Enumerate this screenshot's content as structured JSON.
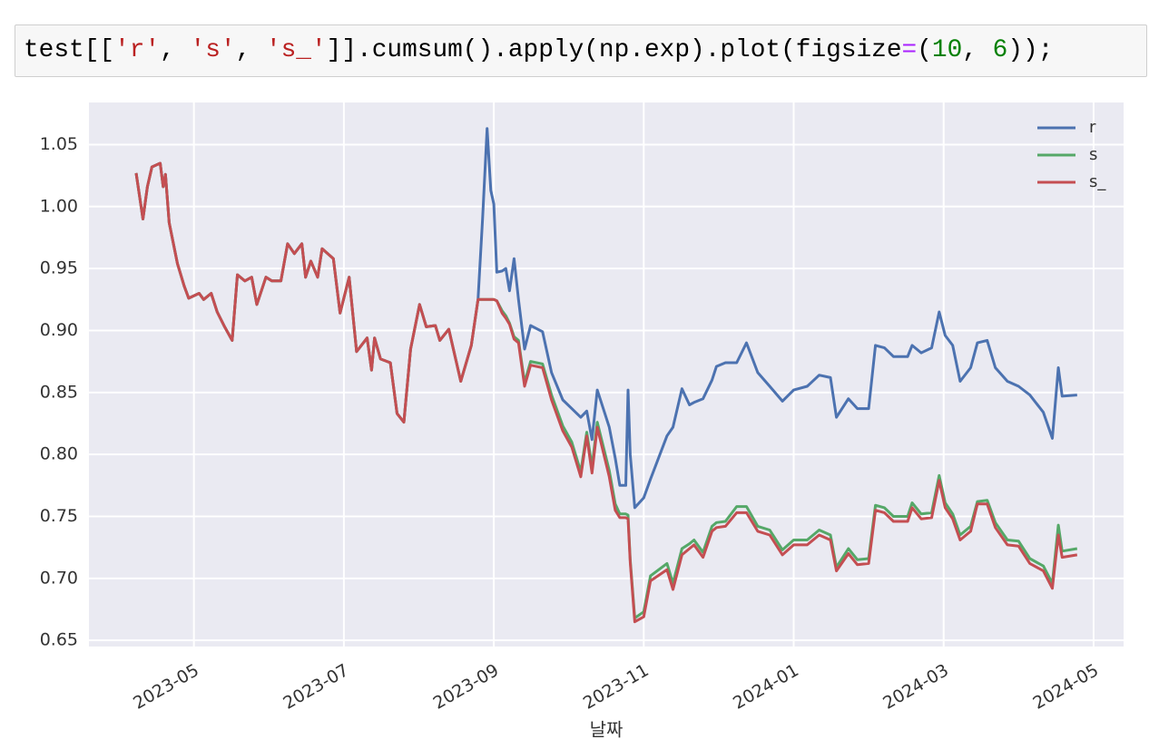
{
  "code": [
    {
      "text": "test[[",
      "color": "#000000"
    },
    {
      "text": "'r'",
      "color": "#ba2121"
    },
    {
      "text": ", ",
      "color": "#000000"
    },
    {
      "text": "'s'",
      "color": "#ba2121"
    },
    {
      "text": ", ",
      "color": "#000000"
    },
    {
      "text": "'s_'",
      "color": "#ba2121"
    },
    {
      "text": "]].cumsum().apply(np.exp).plot(figsize",
      "color": "#000000"
    },
    {
      "text": "=",
      "color": "#aa22ff"
    },
    {
      "text": "(",
      "color": "#000000"
    },
    {
      "text": "10",
      "color": "#008000"
    },
    {
      "text": ", ",
      "color": "#000000"
    },
    {
      "text": "6",
      "color": "#008000"
    },
    {
      "text": "));",
      "color": "#000000"
    }
  ],
  "chart_data": {
    "type": "line",
    "xlabel": "날짜",
    "grid": true,
    "legend": "upper right",
    "xlim": [
      -0.4,
      13.4
    ],
    "xticks": [
      {
        "value": 1,
        "label": "2023-05"
      },
      {
        "value": 3,
        "label": "2023-07"
      },
      {
        "value": 5,
        "label": "2023-09"
      },
      {
        "value": 7,
        "label": "2023-11"
      },
      {
        "value": 9,
        "label": "2024-01"
      },
      {
        "value": 11,
        "label": "2024-03"
      },
      {
        "value": 13,
        "label": "2024-05"
      }
    ],
    "ylim": [
      0.645,
      1.084
    ],
    "yticks": [
      0.65,
      {
        "value": 0.7,
        "label": "0.70"
      },
      0.75,
      {
        "value": 0.8,
        "label": "0.80"
      },
      0.85,
      {
        "value": 0.9,
        "label": "0.90"
      },
      0.95,
      {
        "value": 1,
        "label": "1.00"
      },
      1.05
    ],
    "x": [
      0.23,
      0.32,
      0.38,
      0.44,
      0.55,
      0.59,
      0.62,
      0.67,
      0.78,
      0.87,
      0.93,
      1.07,
      1.13,
      1.23,
      1.31,
      1.41,
      1.51,
      1.58,
      1.68,
      1.77,
      1.84,
      1.96,
      2.04,
      2.16,
      2.25,
      2.34,
      2.44,
      2.49,
      2.56,
      2.65,
      2.71,
      2.86,
      2.95,
      3.07,
      3.17,
      3.31,
      3.37,
      3.41,
      3.49,
      3.62,
      3.71,
      3.8,
      3.89,
      4.01,
      4.1,
      4.22,
      4.28,
      4.4,
      4.56,
      4.7,
      4.79,
      4.85,
      4.91,
      4.96,
      5.0,
      5.04,
      5.11,
      5.16,
      5.21,
      5.27,
      5.33,
      5.41,
      5.49,
      5.65,
      5.77,
      5.92,
      6.04,
      6.16,
      6.24,
      6.31,
      6.38,
      6.54,
      6.62,
      6.68,
      6.76,
      6.79,
      6.82,
      6.88,
      7.0,
      7.09,
      7.31,
      7.39,
      7.51,
      7.61,
      7.67,
      7.79,
      7.91,
      7.97,
      8.09,
      8.24,
      8.37,
      8.52,
      8.68,
      8.85,
      9.0,
      9.18,
      9.34,
      9.49,
      9.57,
      9.73,
      9.85,
      10.0,
      10.09,
      10.21,
      10.33,
      10.52,
      10.58,
      10.7,
      10.84,
      10.94,
      11.02,
      11.12,
      11.22,
      11.36,
      11.45,
      11.58,
      11.69,
      11.85,
      12.0,
      12.15,
      12.33,
      12.45,
      12.53,
      12.58,
      12.78
    ],
    "series": [
      {
        "name": "r",
        "color": "#4c72b0",
        "values": [
          1.027,
          0.99,
          1.016,
          1.032,
          1.035,
          1.016,
          1.026,
          0.987,
          0.954,
          0.936,
          0.926,
          0.93,
          0.925,
          0.93,
          0.915,
          0.903,
          0.892,
          0.945,
          0.94,
          0.943,
          0.921,
          0.943,
          0.94,
          0.94,
          0.97,
          0.962,
          0.97,
          0.943,
          0.956,
          0.943,
          0.966,
          0.958,
          0.914,
          0.943,
          0.883,
          0.894,
          0.868,
          0.894,
          0.877,
          0.874,
          0.833,
          0.826,
          0.885,
          0.921,
          0.903,
          0.904,
          0.892,
          0.901,
          0.859,
          0.888,
          0.925,
          0.99,
          1.063,
          1.013,
          1.002,
          0.947,
          0.948,
          0.95,
          0.932,
          0.958,
          0.925,
          0.885,
          0.904,
          0.899,
          0.866,
          0.844,
          0.837,
          0.83,
          0.835,
          0.812,
          0.852,
          0.822,
          0.797,
          0.775,
          0.775,
          0.852,
          0.8,
          0.757,
          0.765,
          0.78,
          0.815,
          0.822,
          0.853,
          0.84,
          0.842,
          0.845,
          0.86,
          0.871,
          0.874,
          0.874,
          0.89,
          0.866,
          0.855,
          0.843,
          0.852,
          0.855,
          0.864,
          0.862,
          0.83,
          0.845,
          0.837,
          0.837,
          0.888,
          0.886,
          0.879,
          0.879,
          0.888,
          0.882,
          0.886,
          0.915,
          0.896,
          0.888,
          0.859,
          0.87,
          0.89,
          0.892,
          0.87,
          0.859,
          0.855,
          0.848,
          0.834,
          0.813,
          0.87,
          0.847,
          0.848
        ]
      },
      {
        "name": "s",
        "color": "#55a868",
        "values": [
          1.027,
          0.99,
          1.016,
          1.032,
          1.035,
          1.016,
          1.026,
          0.987,
          0.954,
          0.936,
          0.926,
          0.93,
          0.925,
          0.93,
          0.915,
          0.903,
          0.892,
          0.945,
          0.94,
          0.943,
          0.921,
          0.943,
          0.94,
          0.94,
          0.97,
          0.962,
          0.97,
          0.943,
          0.956,
          0.943,
          0.966,
          0.958,
          0.914,
          0.943,
          0.883,
          0.894,
          0.868,
          0.894,
          0.877,
          0.874,
          0.833,
          0.826,
          0.885,
          0.921,
          0.903,
          0.904,
          0.892,
          0.901,
          0.859,
          0.888,
          0.925,
          0.925,
          0.925,
          0.925,
          0.925,
          0.924,
          0.916,
          0.912,
          0.906,
          0.895,
          0.892,
          0.858,
          0.875,
          0.873,
          0.848,
          0.823,
          0.81,
          0.786,
          0.818,
          0.79,
          0.826,
          0.787,
          0.76,
          0.752,
          0.752,
          0.751,
          0.715,
          0.668,
          0.673,
          0.702,
          0.712,
          0.696,
          0.724,
          0.728,
          0.731,
          0.721,
          0.742,
          0.745,
          0.746,
          0.758,
          0.758,
          0.742,
          0.739,
          0.723,
          0.731,
          0.731,
          0.739,
          0.735,
          0.709,
          0.724,
          0.715,
          0.716,
          0.759,
          0.757,
          0.75,
          0.75,
          0.761,
          0.752,
          0.753,
          0.783,
          0.761,
          0.752,
          0.735,
          0.742,
          0.762,
          0.763,
          0.745,
          0.731,
          0.73,
          0.716,
          0.71,
          0.696,
          0.743,
          0.722,
          0.724
        ]
      },
      {
        "name": "s_",
        "color": "#c44e52",
        "values": [
          1.027,
          0.99,
          1.016,
          1.032,
          1.035,
          1.016,
          1.026,
          0.987,
          0.954,
          0.936,
          0.926,
          0.93,
          0.925,
          0.93,
          0.915,
          0.903,
          0.892,
          0.945,
          0.94,
          0.943,
          0.921,
          0.943,
          0.94,
          0.94,
          0.97,
          0.962,
          0.97,
          0.943,
          0.956,
          0.943,
          0.966,
          0.958,
          0.914,
          0.943,
          0.883,
          0.894,
          0.868,
          0.894,
          0.877,
          0.874,
          0.833,
          0.826,
          0.885,
          0.921,
          0.903,
          0.904,
          0.892,
          0.901,
          0.859,
          0.888,
          0.925,
          0.925,
          0.925,
          0.925,
          0.925,
          0.924,
          0.914,
          0.91,
          0.905,
          0.893,
          0.89,
          0.855,
          0.872,
          0.87,
          0.844,
          0.819,
          0.806,
          0.782,
          0.815,
          0.785,
          0.822,
          0.782,
          0.755,
          0.749,
          0.749,
          0.748,
          0.713,
          0.665,
          0.669,
          0.698,
          0.707,
          0.691,
          0.719,
          0.724,
          0.727,
          0.717,
          0.738,
          0.741,
          0.742,
          0.753,
          0.753,
          0.738,
          0.735,
          0.719,
          0.727,
          0.727,
          0.735,
          0.731,
          0.706,
          0.72,
          0.711,
          0.712,
          0.755,
          0.753,
          0.746,
          0.746,
          0.757,
          0.748,
          0.749,
          0.779,
          0.757,
          0.748,
          0.731,
          0.738,
          0.76,
          0.76,
          0.741,
          0.727,
          0.726,
          0.712,
          0.706,
          0.692,
          0.735,
          0.717,
          0.719
        ]
      }
    ]
  }
}
